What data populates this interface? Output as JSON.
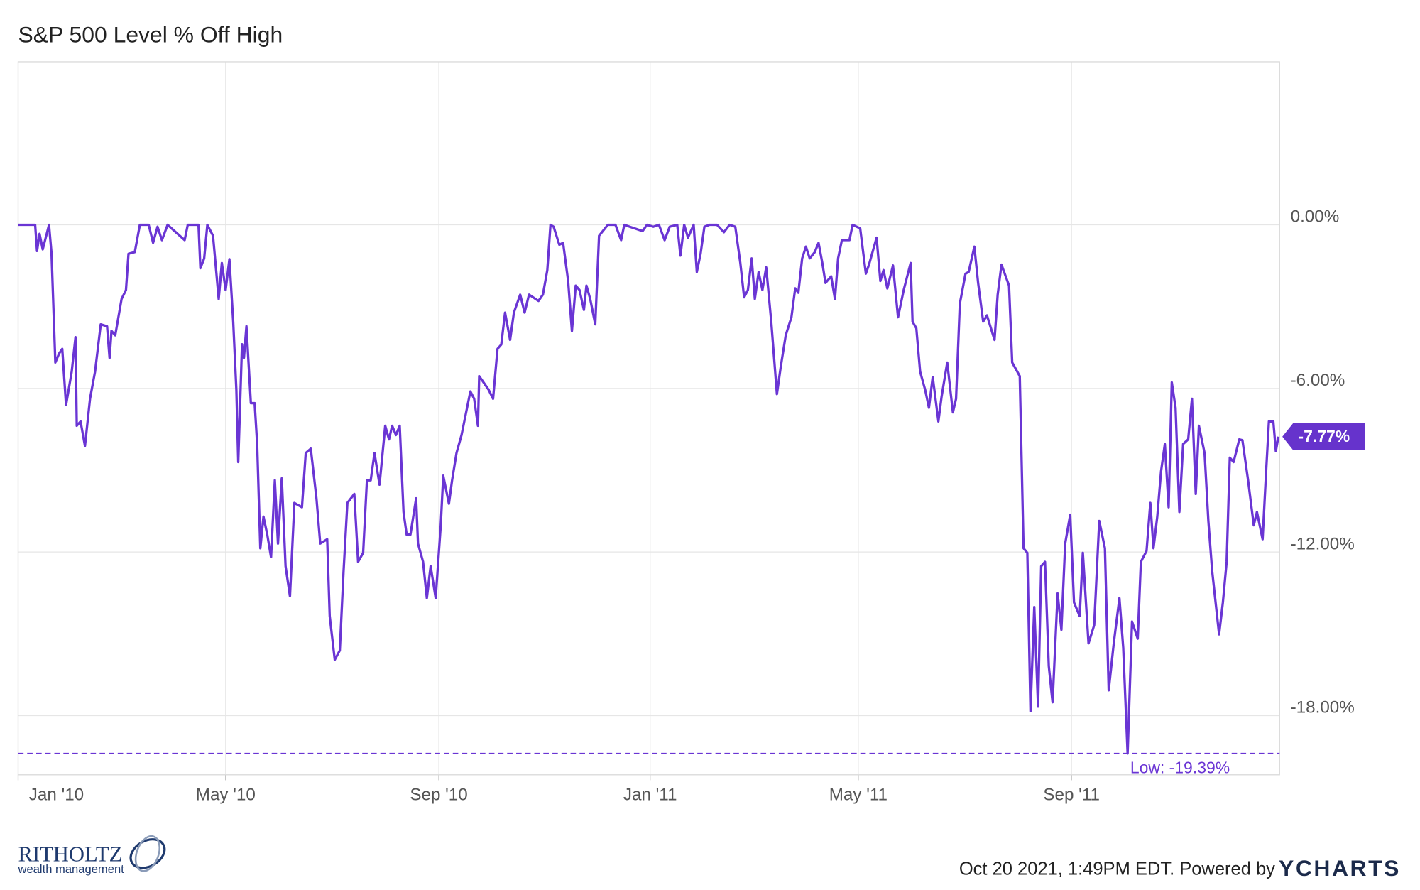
{
  "chart_data": {
    "type": "line",
    "title": "S&P 500 Level % Off High",
    "color": "#6a35d4",
    "xlim": [
      2010,
      2012
    ],
    "ylim": [
      -20.17,
      5.98
    ],
    "grid": true,
    "xticks": [
      {
        "value": 2010,
        "label": "Jan '10"
      },
      {
        "value": 2010.329,
        "label": "May '10"
      },
      {
        "value": 2010.667,
        "label": "Sep '10"
      },
      {
        "value": 2011.002,
        "label": "Jan '11"
      },
      {
        "value": 2011.332,
        "label": "May '11"
      },
      {
        "value": 2011.67,
        "label": "Sep '11"
      }
    ],
    "yticks": [
      {
        "value": 0,
        "label": "0.00%"
      },
      {
        "value": -6,
        "label": "-6.00%"
      },
      {
        "value": -12,
        "label": "-12.00%"
      },
      {
        "value": -18,
        "label": "-18.00%"
      }
    ],
    "low": {
      "value": -19.39,
      "label": "Low: -19.39%"
    },
    "end_label": {
      "value": -7.77,
      "label": "-7.77%"
    },
    "x": [
      2010.0,
      2010.027,
      2010.03,
      2010.034,
      2010.039,
      2010.049,
      2010.053,
      2010.059,
      2010.065,
      2010.07,
      2010.076,
      2010.085,
      2010.091,
      2010.093,
      2010.099,
      2010.106,
      2010.114,
      2010.122,
      2010.131,
      2010.141,
      2010.145,
      2010.148,
      2010.154,
      2010.164,
      2010.171,
      2010.175,
      2010.185,
      2010.193,
      2010.207,
      2010.214,
      2010.221,
      2010.228,
      2010.237,
      2010.264,
      2010.269,
      2010.286,
      2010.289,
      2010.295,
      2010.3,
      2010.309,
      2010.318,
      2010.323,
      2010.329,
      2010.335,
      2010.341,
      2010.346,
      2010.349,
      2010.355,
      2010.358,
      2010.362,
      2010.369,
      2010.375,
      2010.379,
      2010.384,
      2010.389,
      2010.395,
      2010.401,
      2010.407,
      2010.412,
      2010.418,
      2010.424,
      2010.431,
      2010.438,
      2010.45,
      2010.456,
      2010.464,
      2010.473,
      2010.479,
      2010.49,
      2010.494,
      2010.502,
      2010.51,
      2010.516,
      2010.522,
      2010.533,
      2010.539,
      2010.547,
      2010.553,
      2010.559,
      2010.565,
      2010.573,
      2010.582,
      2010.588,
      2010.593,
      2010.599,
      2010.605,
      2010.611,
      2010.616,
      2010.622,
      2010.631,
      2010.634,
      2010.642,
      2010.648,
      2010.654,
      2010.662,
      2010.67,
      2010.674,
      2010.683,
      2010.688,
      2010.695,
      2010.703,
      2010.717,
      2010.723,
      2010.729,
      2010.731,
      2010.746,
      2010.753,
      2010.76,
      2010.766,
      2010.772,
      2010.78,
      2010.786,
      2010.796,
      2010.803,
      2010.81,
      2010.825,
      2010.832,
      2010.839,
      2010.844,
      2010.849,
      2010.858,
      2010.864,
      2010.872,
      2010.878,
      2010.884,
      2010.89,
      2010.897,
      2010.901,
      2010.907,
      2010.915,
      2010.921,
      2010.927,
      2010.935,
      2010.947,
      2010.956,
      2010.961,
      2010.99,
      2010.997,
      2011.007,
      2011.016,
      2011.025,
      2011.033,
      2011.045,
      2011.05,
      2011.056,
      2011.062,
      2011.071,
      2011.076,
      2011.082,
      2011.088,
      2011.096,
      2011.108,
      2011.119,
      2011.128,
      2011.137,
      2011.145,
      2011.151,
      2011.157,
      2011.163,
      2011.168,
      2011.174,
      2011.18,
      2011.186,
      2011.194,
      2011.203,
      2011.209,
      2011.217,
      2011.226,
      2011.232,
      2011.237,
      2011.243,
      2011.249,
      2011.255,
      2011.263,
      2011.269,
      2011.275,
      2011.28,
      2011.289,
      2011.295,
      2011.3,
      2011.306,
      2011.318,
      2011.323,
      2011.335,
      2011.344,
      2011.349,
      2011.361,
      2011.367,
      2011.372,
      2011.378,
      2011.387,
      2011.395,
      2011.404,
      2011.415,
      2011.418,
      2011.424,
      2011.43,
      2011.438,
      2011.444,
      2011.45,
      2011.459,
      2011.464,
      2011.473,
      2011.482,
      2011.487,
      2011.493,
      2011.502,
      2011.507,
      2011.516,
      2011.522,
      2011.53,
      2011.536,
      2011.548,
      2011.553,
      2011.559,
      2011.571,
      2011.576,
      2011.588,
      2011.594,
      2011.6,
      2011.605,
      2011.611,
      2011.617,
      2011.622,
      2011.628,
      2011.634,
      2011.64,
      2011.648,
      2011.654,
      2011.66,
      2011.668,
      2011.674,
      2011.683,
      2011.688,
      2011.697,
      2011.706,
      2011.714,
      2011.723,
      2011.729,
      2011.737,
      2011.746,
      2011.752,
      2011.759,
      2011.766,
      2011.775,
      2011.78,
      2011.789,
      2011.795,
      2011.8,
      2011.806,
      2011.812,
      2011.818,
      2011.824,
      2011.829,
      2011.835,
      2011.841,
      2011.847,
      2011.855,
      2011.861,
      2011.867,
      2011.872,
      2011.881,
      2011.887,
      2011.893,
      2011.904,
      2011.91,
      2011.916,
      2011.921,
      2011.927,
      2011.936,
      2011.941,
      2011.95,
      2011.959,
      2011.964,
      2011.973,
      2011.979,
      2011.983,
      2011.99,
      2011.994,
      2011.998
    ],
    "values": [
      0,
      0,
      -0.96,
      -0.33,
      -0.9,
      0,
      -1.06,
      -5.05,
      -4.72,
      -4.55,
      -6.61,
      -5.38,
      -4.12,
      -7.37,
      -7.21,
      -8.11,
      -6.38,
      -5.38,
      -3.65,
      -3.72,
      -4.88,
      -3.89,
      -4.05,
      -2.72,
      -2.39,
      -1.06,
      -1.0,
      0,
      0,
      -0.66,
      -0.07,
      -0.56,
      0,
      -0.56,
      0,
      0,
      -1.59,
      -1.23,
      0,
      -0.4,
      -2.72,
      -1.4,
      -2.39,
      -1.26,
      -3.55,
      -6.05,
      -8.7,
      -4.38,
      -4.88,
      -3.72,
      -6.54,
      -6.54,
      -8.04,
      -11.86,
      -10.7,
      -11.36,
      -12.19,
      -9.37,
      -11.69,
      -9.3,
      -12.52,
      -13.62,
      -10.2,
      -10.36,
      -8.37,
      -8.21,
      -10.03,
      -11.69,
      -11.53,
      -14.35,
      -15.95,
      -15.61,
      -12.69,
      -10.2,
      -9.87,
      -12.36,
      -12.03,
      -9.37,
      -9.37,
      -8.37,
      -9.53,
      -7.37,
      -7.87,
      -7.37,
      -7.71,
      -7.37,
      -10.53,
      -11.36,
      -11.36,
      -10.03,
      -11.69,
      -12.36,
      -13.69,
      -12.52,
      -13.69,
      -11.03,
      -9.2,
      -10.23,
      -9.37,
      -8.37,
      -7.71,
      -6.11,
      -6.38,
      -7.37,
      -5.55,
      -6.05,
      -6.38,
      -4.55,
      -4.39,
      -3.22,
      -4.22,
      -3.22,
      -2.56,
      -3.22,
      -2.56,
      -2.79,
      -2.56,
      -1.66,
      0,
      -0.07,
      -0.73,
      -0.66,
      -2.06,
      -3.89,
      -2.23,
      -2.39,
      -3.12,
      -2.23,
      -2.72,
      -3.65,
      -0.4,
      -0.23,
      0,
      0,
      -0.56,
      0,
      -0.23,
      0,
      -0.07,
      0,
      -0.56,
      -0.07,
      0,
      -1.13,
      0,
      -0.47,
      0,
      -1.73,
      -1.06,
      -0.07,
      0,
      0,
      -0.27,
      0,
      -0.07,
      -1.4,
      -2.66,
      -2.39,
      -1.23,
      -2.72,
      -1.73,
      -2.39,
      -1.56,
      -3.55,
      -6.21,
      -5.22,
      -4.05,
      -3.39,
      -2.33,
      -2.49,
      -1.23,
      -0.8,
      -1.23,
      -1.0,
      -0.66,
      -1.4,
      -2.13,
      -1.89,
      -2.72,
      -1.23,
      -0.56,
      -0.56,
      0,
      -0.13,
      -1.79,
      -1.46,
      -0.47,
      -2.06,
      -1.66,
      -2.33,
      -1.49,
      -3.39,
      -2.39,
      -1.4,
      -3.55,
      -3.79,
      -5.38,
      -6.05,
      -6.71,
      -5.58,
      -7.21,
      -6.31,
      -5.05,
      -6.88,
      -6.38,
      -2.89,
      -1.79,
      -1.73,
      -0.8,
      -2.13,
      -3.55,
      -3.32,
      -4.22,
      -2.56,
      -1.46,
      -2.23,
      -5.05,
      -5.55,
      -11.86,
      -12.03,
      -17.84,
      -14.02,
      -17.67,
      -12.52,
      -12.36,
      -16.18,
      -17.51,
      -13.52,
      -14.85,
      -11.69,
      -10.63,
      -13.85,
      -14.35,
      -12.03,
      -15.35,
      -14.68,
      -10.86,
      -11.86,
      -17.07,
      -15.35,
      -13.69,
      -15.51,
      -19.39,
      -14.55,
      -15.18,
      -12.36,
      -11.96,
      -10.2,
      -11.86,
      -10.7,
      -9.04,
      -8.04,
      -10.36,
      -5.78,
      -6.71,
      -10.53,
      -8.04,
      -7.87,
      -6.38,
      -9.87,
      -7.37,
      -8.37,
      -10.86,
      -12.69,
      -15.02,
      -13.85,
      -12.36,
      -8.54,
      -8.7,
      -7.87,
      -7.9,
      -9.37,
      -11.02,
      -10.53,
      -11.53,
      -8.87,
      -7.21,
      -7.21,
      -8.3,
      -7.77
    ]
  },
  "footer": {
    "logo_name": "RITHOLTZ",
    "logo_sub": "wealth management",
    "timestamp": "Oct 20 2021, 1:49PM EDT. Powered by",
    "brand": "YCHARTS"
  }
}
